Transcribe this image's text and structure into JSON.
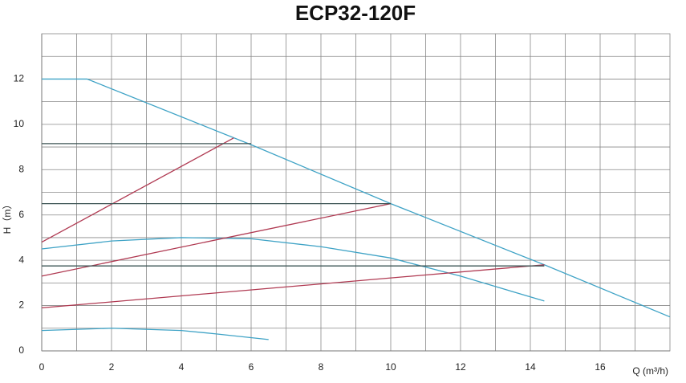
{
  "chart_data": {
    "type": "line",
    "title": "ECP32-120F",
    "x_label": "Q (m³/h)",
    "y_label": "H（m）",
    "xlim": [
      0,
      18
    ],
    "xticks": [
      0,
      2,
      4,
      6,
      8,
      10,
      12,
      14,
      16
    ],
    "ylim": [
      0,
      14
    ],
    "yticks": [
      0,
      2,
      4,
      6,
      8,
      10,
      12
    ],
    "grid": true,
    "series": [
      {
        "color": "#3fa3c6",
        "x": [
          0,
          1.3,
          6,
          10,
          14.4,
          18
        ],
        "values": [
          12,
          12,
          9.1,
          6.5,
          3.8,
          1.5
        ]
      },
      {
        "color": "#3fa3c6",
        "x": [
          0,
          2,
          4,
          6,
          8,
          10,
          12,
          14.4
        ],
        "values": [
          4.5,
          4.85,
          5.0,
          4.95,
          4.6,
          4.1,
          3.3,
          2.2
        ]
      },
      {
        "color": "#3fa3c6",
        "x": [
          0,
          2,
          4,
          5,
          6.5
        ],
        "values": [
          0.9,
          1.0,
          0.9,
          0.75,
          0.5
        ]
      },
      {
        "color": "#b03a52",
        "x": [
          0,
          5.5
        ],
        "values": [
          4.8,
          9.4
        ]
      },
      {
        "color": "#b03a52",
        "x": [
          0,
          10
        ],
        "values": [
          3.3,
          6.5
        ]
      },
      {
        "color": "#b03a52",
        "x": [
          0,
          14.4
        ],
        "values": [
          1.9,
          3.8
        ]
      },
      {
        "color": "#3d5555",
        "x": [
          0,
          6
        ],
        "values": [
          9.15,
          9.15
        ]
      },
      {
        "color": "#3d5555",
        "x": [
          0,
          10
        ],
        "values": [
          6.5,
          6.5
        ]
      },
      {
        "color": "#3d5555",
        "x": [
          0,
          14.4
        ],
        "values": [
          3.75,
          3.75
        ]
      }
    ]
  }
}
